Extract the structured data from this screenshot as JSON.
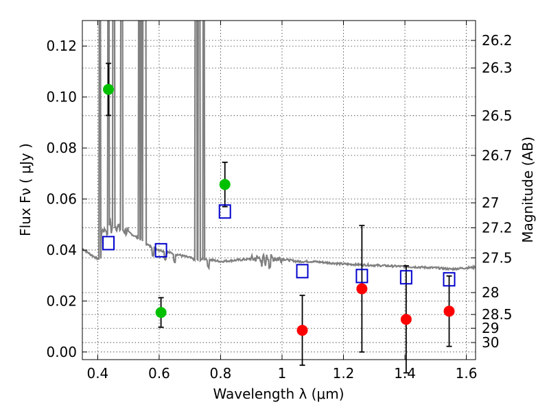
{
  "chart_data": {
    "type": "scatter",
    "xlabel": "Wavelength  λ (μm)",
    "ylabel": "Flux  Fν  ( μJy )",
    "ylabel_right": "Magnitude (AB)",
    "xlim": [
      0.35,
      1.63
    ],
    "ylim": [
      -0.003,
      0.13
    ],
    "grid": true,
    "x_ticks": [
      0.4,
      0.6,
      0.8,
      1.0,
      1.2,
      1.4,
      1.6
    ],
    "x_tick_labels": [
      "0.4",
      "0.6",
      "0.8",
      "1",
      "1.2",
      "1.4",
      "1.6"
    ],
    "y_ticks": [
      0.0,
      0.02,
      0.04,
      0.06,
      0.08,
      0.1,
      0.12
    ],
    "y_tick_labels": [
      "0.00",
      "0.02",
      "0.04",
      "0.06",
      "0.08",
      "0.10",
      "0.12"
    ],
    "right_ticks": [
      {
        "label": "26.2",
        "flux": 0.1222
      },
      {
        "label": "26.3",
        "flux": 0.1114
      },
      {
        "label": "26.5",
        "flux": 0.0927
      },
      {
        "label": "26.7",
        "flux": 0.0771
      },
      {
        "label": "27",
        "flux": 0.0585
      },
      {
        "label": "27.2",
        "flux": 0.0487
      },
      {
        "label": "27.5",
        "flux": 0.0369
      },
      {
        "label": "28",
        "flux": 0.0233
      },
      {
        "label": "28.5",
        "flux": 0.0147
      },
      {
        "label": "29",
        "flux": 0.0093
      },
      {
        "label": "30",
        "flux": 0.0037
      }
    ],
    "series": [
      {
        "marker": "circle",
        "color": "#00c000",
        "points": [
          {
            "x": 0.435,
            "y": 0.103,
            "err_low": 0.0102,
            "err_high": 0.0102
          },
          {
            "x": 0.606,
            "y": 0.0155,
            "err_low": 0.0058,
            "err_high": 0.0058
          },
          {
            "x": 0.814,
            "y": 0.0657,
            "err_low": 0.0087,
            "err_high": 0.0087
          }
        ]
      },
      {
        "marker": "circle",
        "color": "#ff0000",
        "points": [
          {
            "x": 1.066,
            "y": 0.0085,
            "err_low": 0.0137,
            "err_high": 0.0137
          },
          {
            "x": 1.26,
            "y": 0.0248,
            "err_low": 0.0248,
            "err_high": 0.0248
          },
          {
            "x": 1.404,
            "y": 0.0128,
            "err_low": 0.021,
            "err_high": 0.021
          },
          {
            "x": 1.544,
            "y": 0.016,
            "err_low": 0.0138,
            "err_high": 0.0138
          }
        ]
      },
      {
        "marker": "open-square",
        "color": "#0000cc",
        "points": [
          {
            "x": 0.435,
            "y": 0.0427
          },
          {
            "x": 0.606,
            "y": 0.0399
          },
          {
            "x": 0.814,
            "y": 0.0551
          },
          {
            "x": 1.066,
            "y": 0.0317
          },
          {
            "x": 1.26,
            "y": 0.0298
          },
          {
            "x": 1.404,
            "y": 0.0293
          },
          {
            "x": 1.544,
            "y": 0.0285
          }
        ]
      }
    ],
    "model_spectrum": {
      "color": "#808080",
      "x": [
        0.35,
        0.38,
        0.4,
        0.41,
        0.412,
        0.414,
        0.42,
        0.43,
        0.44,
        0.45,
        0.46,
        0.47,
        0.48,
        0.5,
        0.52,
        0.535,
        0.55,
        0.57,
        0.6,
        0.65,
        0.7,
        0.72,
        0.75,
        0.8,
        0.85,
        0.9,
        0.95,
        1.0,
        1.05,
        1.1,
        1.2,
        1.3,
        1.4,
        1.5,
        1.55,
        1.6,
        1.63
      ],
      "y": [
        0.0405,
        0.038,
        0.0365,
        0.0365,
        0.046,
        0.0475,
        0.048,
        0.0495,
        0.051,
        0.05,
        0.0495,
        0.0485,
        0.048,
        0.047,
        0.0455,
        0.0445,
        0.043,
        0.0415,
        0.04,
        0.0385,
        0.037,
        0.036,
        0.0365,
        0.0355,
        0.036,
        0.0365,
        0.037,
        0.0365,
        0.0355,
        0.0355,
        0.0345,
        0.034,
        0.0335,
        0.033,
        0.0325,
        0.033,
        0.0332
      ],
      "spikes": [
        0.407,
        0.435,
        0.452,
        0.478,
        0.535,
        0.543,
        0.55,
        0.555,
        0.72,
        0.73,
        0.745
      ],
      "absorption": [
        0.43,
        0.445,
        0.58,
        0.62,
        0.65,
        0.76,
        0.935,
        0.945,
        0.96
      ]
    }
  }
}
